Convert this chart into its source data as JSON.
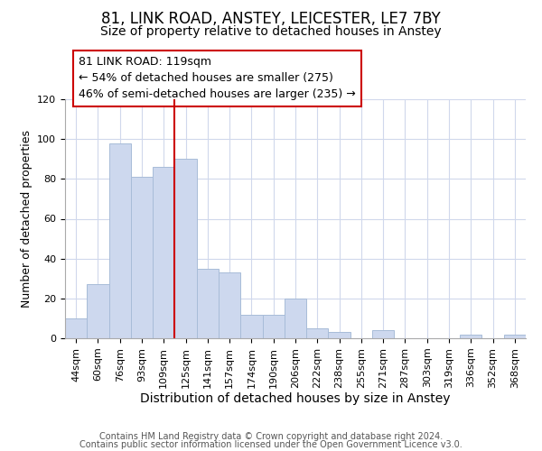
{
  "title": "81, LINK ROAD, ANSTEY, LEICESTER, LE7 7BY",
  "subtitle": "Size of property relative to detached houses in Anstey",
  "xlabel": "Distribution of detached houses by size in Anstey",
  "ylabel": "Number of detached properties",
  "bar_labels": [
    "44sqm",
    "60sqm",
    "76sqm",
    "93sqm",
    "109sqm",
    "125sqm",
    "141sqm",
    "157sqm",
    "174sqm",
    "190sqm",
    "206sqm",
    "222sqm",
    "238sqm",
    "255sqm",
    "271sqm",
    "287sqm",
    "303sqm",
    "319sqm",
    "336sqm",
    "352sqm",
    "368sqm"
  ],
  "bar_values": [
    10,
    27,
    98,
    81,
    86,
    90,
    35,
    33,
    12,
    12,
    20,
    5,
    3,
    0,
    4,
    0,
    0,
    0,
    2,
    0,
    2
  ],
  "bar_color": "#cdd8ee",
  "bar_edge_color": "#a8bcd8",
  "vline_x": 4.5,
  "vline_color": "#cc0000",
  "ylim": [
    0,
    120
  ],
  "yticks": [
    0,
    20,
    40,
    60,
    80,
    100,
    120
  ],
  "annotation_text": "81 LINK ROAD: 119sqm\n← 54% of detached houses are smaller (275)\n46% of semi-detached houses are larger (235) →",
  "annotation_box_color": "#ffffff",
  "annotation_box_edge": "#cc0000",
  "footer_line1": "Contains HM Land Registry data © Crown copyright and database right 2024.",
  "footer_line2": "Contains public sector information licensed under the Open Government Licence v3.0.",
  "title_fontsize": 12,
  "subtitle_fontsize": 10,
  "xlabel_fontsize": 10,
  "ylabel_fontsize": 9,
  "tick_fontsize": 8,
  "annotation_fontsize": 9,
  "footer_fontsize": 7
}
